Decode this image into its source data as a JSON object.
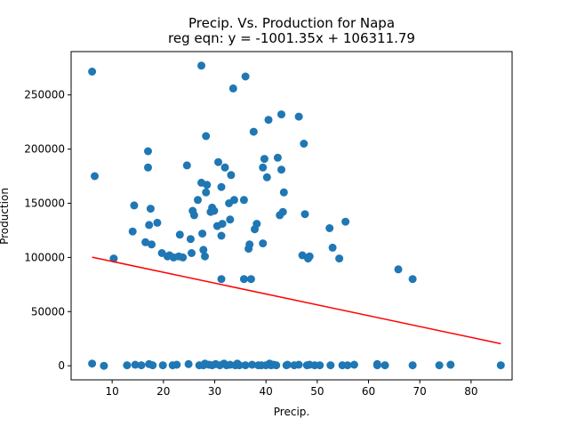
{
  "chart_data": {
    "type": "scatter",
    "title": "Precip. Vs. Production for Napa",
    "subtitle": "reg eqn: y = -1001.35x + 106311.79",
    "xlabel": "Precip.",
    "ylabel": "Production",
    "xlim": [
      2,
      88
    ],
    "ylim": [
      -13000,
      290000
    ],
    "xticks": [
      10,
      20,
      30,
      40,
      50,
      60,
      70,
      80
    ],
    "yticks": [
      0,
      50000,
      100000,
      150000,
      200000,
      250000
    ],
    "grid": false,
    "legend": "none",
    "colors": {
      "points": "#1f77b4",
      "regression": "#ff0000"
    },
    "regression": {
      "slope": -1001.35,
      "intercept": 106311.79,
      "x_range": [
        6.1,
        85.8
      ]
    },
    "points": [
      [
        6.1,
        271500
      ],
      [
        6.6,
        175000
      ],
      [
        6.1,
        2000
      ],
      [
        8.4,
        0
      ],
      [
        10.3,
        99000
      ],
      [
        12.9,
        500
      ],
      [
        14.0,
        124000
      ],
      [
        14.3,
        148000
      ],
      [
        14.5,
        1000
      ],
      [
        15.7,
        500
      ],
      [
        16.5,
        114000
      ],
      [
        17.0,
        198000
      ],
      [
        17.0,
        183000
      ],
      [
        17.2,
        130000
      ],
      [
        17.2,
        1500
      ],
      [
        17.5,
        145000
      ],
      [
        17.7,
        112000
      ],
      [
        17.9,
        500
      ],
      [
        18.8,
        132000
      ],
      [
        19.7,
        104000
      ],
      [
        19.9,
        500
      ],
      [
        20.8,
        101000
      ],
      [
        21.2,
        102000
      ],
      [
        21.8,
        500
      ],
      [
        22.0,
        100000
      ],
      [
        22.6,
        1000
      ],
      [
        23.0,
        101000
      ],
      [
        23.2,
        121000
      ],
      [
        23.8,
        100000
      ],
      [
        24.6,
        185000
      ],
      [
        24.9,
        1500
      ],
      [
        25.3,
        117000
      ],
      [
        25.5,
        104000
      ],
      [
        25.7,
        143000
      ],
      [
        26.0,
        139000
      ],
      [
        26.7,
        153000
      ],
      [
        27.0,
        500
      ],
      [
        27.4,
        277000
      ],
      [
        27.4,
        169000
      ],
      [
        27.6,
        122000
      ],
      [
        27.8,
        107000
      ],
      [
        27.8,
        500
      ],
      [
        28.1,
        101000
      ],
      [
        28.1,
        2000
      ],
      [
        28.3,
        212000
      ],
      [
        28.3,
        160000
      ],
      [
        28.5,
        167000
      ],
      [
        28.9,
        1000
      ],
      [
        29.2,
        142000
      ],
      [
        29.5,
        146000
      ],
      [
        29.5,
        500
      ],
      [
        29.9,
        143000
      ],
      [
        30.2,
        1500
      ],
      [
        30.5,
        129000
      ],
      [
        30.7,
        188000
      ],
      [
        31.0,
        500
      ],
      [
        31.3,
        120000
      ],
      [
        31.3,
        80000
      ],
      [
        31.3,
        165000
      ],
      [
        31.5,
        131000
      ],
      [
        31.8,
        2000
      ],
      [
        32.0,
        183000
      ],
      [
        32.3,
        500
      ],
      [
        32.8,
        150000
      ],
      [
        33.0,
        135000
      ],
      [
        33.0,
        1000
      ],
      [
        33.2,
        176000
      ],
      [
        33.6,
        256000
      ],
      [
        33.8,
        153000
      ],
      [
        34.0,
        500
      ],
      [
        34.4,
        2000
      ],
      [
        34.8,
        500
      ],
      [
        35.7,
        153000
      ],
      [
        35.7,
        80000
      ],
      [
        36.0,
        267000
      ],
      [
        36.0,
        500
      ],
      [
        36.6,
        108000
      ],
      [
        36.8,
        112000
      ],
      [
        37.1,
        80000
      ],
      [
        37.3,
        1000
      ],
      [
        37.6,
        216000
      ],
      [
        37.8,
        126000
      ],
      [
        38.2,
        131000
      ],
      [
        38.5,
        500
      ],
      [
        39.1,
        500
      ],
      [
        39.4,
        183000
      ],
      [
        39.4,
        113000
      ],
      [
        39.7,
        191000
      ],
      [
        40.0,
        500
      ],
      [
        40.2,
        174000
      ],
      [
        40.5,
        227000
      ],
      [
        40.7,
        2000
      ],
      [
        41.0,
        500
      ],
      [
        41.5,
        1000
      ],
      [
        42.0,
        500
      ],
      [
        42.3,
        192000
      ],
      [
        42.7,
        139000
      ],
      [
        43.0,
        232000
      ],
      [
        43.0,
        181000
      ],
      [
        43.3,
        142000
      ],
      [
        43.5,
        160000
      ],
      [
        44.0,
        500
      ],
      [
        44.2,
        1000
      ],
      [
        45.5,
        500
      ],
      [
        46.4,
        230000
      ],
      [
        46.4,
        1000
      ],
      [
        47.1,
        102000
      ],
      [
        47.4,
        205000
      ],
      [
        47.6,
        140000
      ],
      [
        48.0,
        500
      ],
      [
        48.2,
        99000
      ],
      [
        48.5,
        101000
      ],
      [
        48.5,
        1000
      ],
      [
        49.5,
        500
      ],
      [
        50.5,
        500
      ],
      [
        52.4,
        127000
      ],
      [
        52.6,
        500
      ],
      [
        53.0,
        109000
      ],
      [
        54.3,
        99000
      ],
      [
        54.9,
        500
      ],
      [
        55.5,
        133000
      ],
      [
        55.9,
        500
      ],
      [
        57.2,
        1000
      ],
      [
        61.7,
        500
      ],
      [
        61.7,
        1500
      ],
      [
        63.2,
        500
      ],
      [
        65.8,
        89000
      ],
      [
        68.6,
        80000
      ],
      [
        68.6,
        500
      ],
      [
        73.8,
        500
      ],
      [
        76.0,
        1000
      ],
      [
        85.8,
        500
      ]
    ]
  }
}
